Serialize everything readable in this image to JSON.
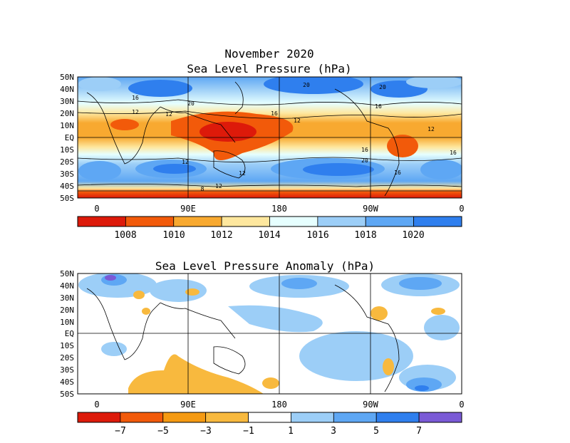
{
  "header": {
    "title_line1": "November 2020",
    "title_line2": "Sea Level Pressure (hPa)"
  },
  "top_map": {
    "lat_labels": [
      "50N",
      "40N",
      "30N",
      "20N",
      "10N",
      "EQ",
      "10S",
      "20S",
      "30S",
      "40S",
      "50S"
    ],
    "lon_labels": [
      "0",
      "90E",
      "180",
      "90W",
      "0"
    ],
    "contour_labels": [
      "20",
      "20",
      "16",
      "12",
      "12",
      "20",
      "16",
      "12",
      "16",
      "12",
      "16",
      "20",
      "16",
      "12",
      "12",
      "16",
      "12",
      "8"
    ],
    "colorbar_labels": [
      "1008",
      "1010",
      "1012",
      "1014",
      "1016",
      "1018",
      "1020"
    ],
    "colorbar_colors": [
      "#dd1a0a",
      "#f25a0a",
      "#f8a930",
      "#fee79e",
      "#e6ffff",
      "#9ccef7",
      "#5ea7f4",
      "#2f7fee"
    ]
  },
  "bottom_map": {
    "title": "Sea Level Pressure Anomaly (hPa)",
    "lat_labels": [
      "50N",
      "40N",
      "30N",
      "20N",
      "10N",
      "EQ",
      "10S",
      "20S",
      "30S",
      "40S",
      "50S"
    ],
    "lon_labels": [
      "0",
      "90E",
      "180",
      "90W",
      "0"
    ],
    "colorbar_labels": [
      "−7",
      "−5",
      "−3",
      "−1",
      "1",
      "3",
      "5",
      "7"
    ],
    "colorbar_colors": [
      "#dd1a0a",
      "#f25a0a",
      "#f59a12",
      "#f8b93e",
      "#ffffff",
      "#9ccef7",
      "#5ea7f4",
      "#2f7fee",
      "#7a5ad6"
    ]
  }
}
